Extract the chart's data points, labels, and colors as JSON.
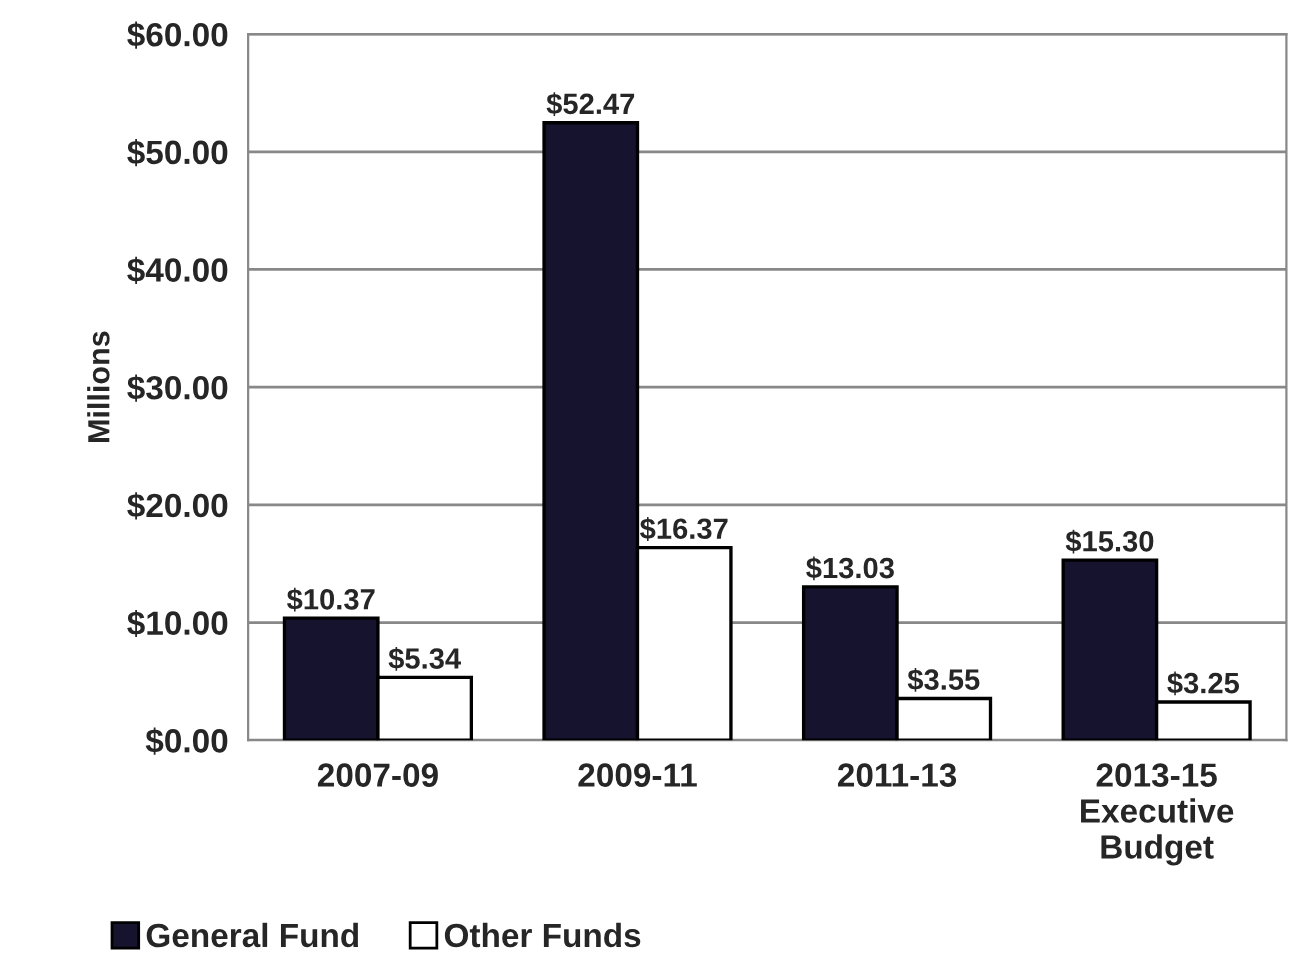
{
  "chart_data": {
    "type": "bar",
    "ylabel": "Millions",
    "categories": [
      "2007-09",
      "2009-11",
      "2011-13",
      "2013-15\nExecutive\nBudget"
    ],
    "series": [
      {
        "name": "General Fund",
        "color": "#15132e",
        "values": [
          10.37,
          52.47,
          13.03,
          15.3
        ],
        "value_labels": [
          "$10.37",
          "$52.47",
          "$13.03",
          "$15.30"
        ]
      },
      {
        "name": "Other Funds",
        "color": "#ffffff",
        "values": [
          5.34,
          16.37,
          3.55,
          3.25
        ],
        "value_labels": [
          "$5.34",
          "$16.37",
          "$3.55",
          "$3.25"
        ]
      }
    ],
    "ylim": [
      0,
      60
    ],
    "yticks": [
      {
        "value": 0,
        "label": "$0.00"
      },
      {
        "value": 10,
        "label": "$10.00"
      },
      {
        "value": 20,
        "label": "$20.00"
      },
      {
        "value": 30,
        "label": "$30.00"
      },
      {
        "value": 40,
        "label": "$40.00"
      },
      {
        "value": 50,
        "label": "$50.00"
      },
      {
        "value": 60,
        "label": "$60.00"
      }
    ],
    "grid": "y",
    "legend": "bottom left"
  }
}
